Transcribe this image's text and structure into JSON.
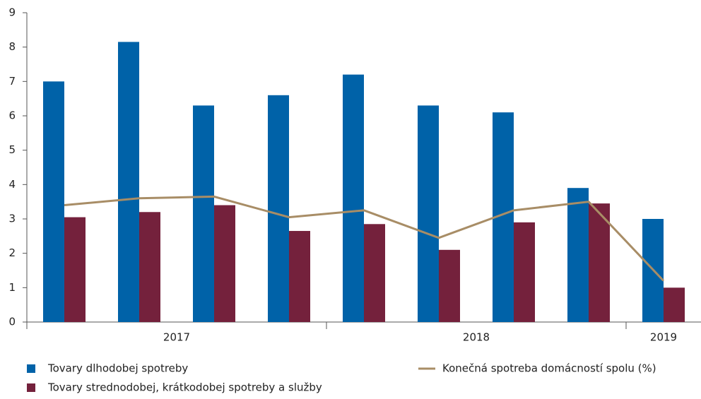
{
  "chart_data": {
    "type": "bar",
    "categories": [
      null,
      null,
      null,
      null,
      null,
      null,
      null,
      null,
      null
    ],
    "groups": [
      {
        "label": "2017",
        "count": 4
      },
      {
        "label": "2018",
        "count": 4
      },
      {
        "label": "2019",
        "count": 1
      }
    ],
    "series": [
      {
        "name": "Tovary dlhodobej spotreby",
        "type": "bar",
        "color": "#0062a8",
        "values": [
          7.0,
          8.15,
          6.3,
          6.6,
          7.2,
          6.3,
          6.1,
          3.9,
          3.0
        ]
      },
      {
        "name": "Tovary strednodobej, krátkodobej spotreby a služby",
        "type": "bar",
        "color": "#74213c",
        "values": [
          3.05,
          3.2,
          3.4,
          2.65,
          2.85,
          2.1,
          2.9,
          3.45,
          1.0
        ]
      },
      {
        "name": "Konečná spotreba domácností spolu (%)",
        "type": "line",
        "color": "#a88d66",
        "values": [
          3.4,
          3.6,
          3.65,
          3.05,
          3.25,
          2.45,
          3.25,
          3.5,
          1.2
        ]
      }
    ],
    "ylim": [
      0,
      9
    ],
    "yticks": [
      0,
      1,
      2,
      3,
      4,
      5,
      6,
      7,
      8,
      9
    ],
    "grid": false
  }
}
